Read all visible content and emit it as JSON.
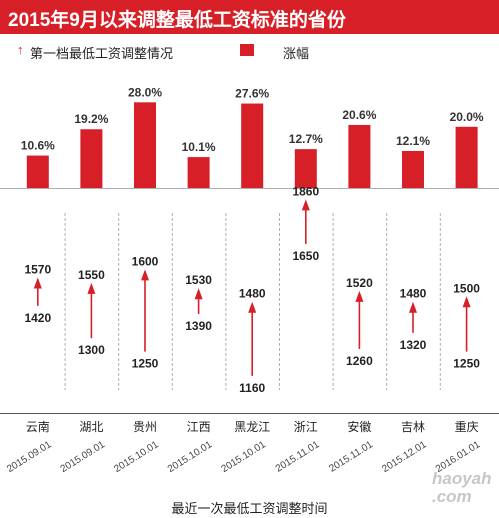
{
  "title": "2015年9月以来调整最低工资标准的省份",
  "legend": {
    "arrow_label": "第一档最低工资调整情况",
    "bar_label": "涨幅"
  },
  "footer": "最近一次最低工资调整时间",
  "watermark": {
    "line1": "haoyah",
    "line2": ".com"
  },
  "colors": {
    "accent": "#d61f26",
    "divider": "#b0b0b0",
    "text": "#333333"
  },
  "chart_data": [
    {
      "type": "bar",
      "series_label": "涨幅",
      "categories": [
        "云南",
        "湖北",
        "贵州",
        "江西",
        "黑龙江",
        "浙江",
        "安徽",
        "吉林",
        "重庆"
      ],
      "values": [
        10.6,
        19.2,
        28.0,
        10.1,
        27.6,
        12.7,
        20.6,
        12.1,
        20.0
      ],
      "value_labels": [
        "10.6%",
        "19.2%",
        "28.0%",
        "10.1%",
        "27.6%",
        "12.7%",
        "20.6%",
        "12.1%",
        "20.0%"
      ]
    },
    {
      "type": "range-arrow",
      "series_label": "第一档最低工资调整情况",
      "categories": [
        "云南",
        "湖北",
        "贵州",
        "江西",
        "黑龙江",
        "浙江",
        "安徽",
        "吉林",
        "重庆"
      ],
      "from": [
        1420,
        1300,
        1250,
        1390,
        1160,
        1650,
        1260,
        1320,
        1250
      ],
      "to": [
        1570,
        1550,
        1600,
        1530,
        1480,
        1860,
        1520,
        1480,
        1500
      ],
      "dates": [
        "2015.09.01",
        "2015.09.01",
        "2015.10.01",
        "2015.10.01",
        "2015.10.01",
        "2015.11.01",
        "2015.11.01",
        "2015.12.01",
        "2016.01.01"
      ],
      "xlabel": "最近一次最低工资调整时间"
    }
  ]
}
